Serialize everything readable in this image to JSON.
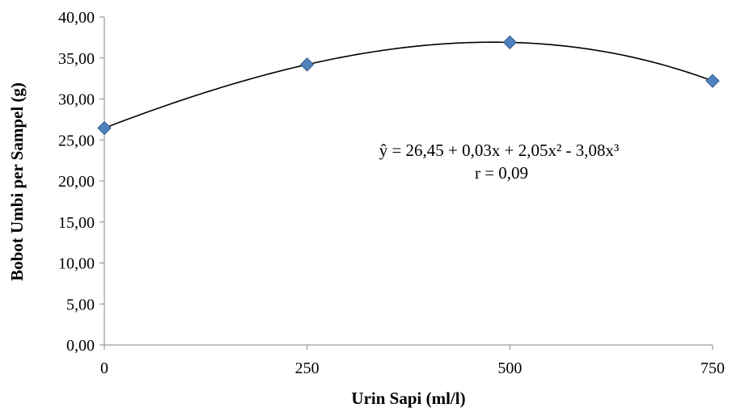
{
  "chart_data": {
    "type": "scatter",
    "xlabel": "Urin Sapi (ml/l)",
    "ylabel": "Bobot Umbi per Sampel (g)",
    "x_ticks": [
      "0",
      "250",
      "500",
      "750"
    ],
    "y_ticks": [
      "0,00",
      "5,00",
      "10,00",
      "15,00",
      "20,00",
      "25,00",
      "30,00",
      "35,00",
      "40,00"
    ],
    "xlim": [
      0,
      750
    ],
    "ylim": [
      0,
      40
    ],
    "points": [
      {
        "x": 0,
        "y": 26.45
      },
      {
        "x": 250,
        "y": 34.2
      },
      {
        "x": 500,
        "y": 36.9
      },
      {
        "x": 750,
        "y": 32.2
      }
    ],
    "trendline": {
      "type": "cubic",
      "equation": "ŷ = 26,45 + 0,03x + 2,05x² - 3,08x³",
      "r_label": "r = 0,09"
    },
    "marker_color": "#4f81bd",
    "marker_border": "#385d8a",
    "line_color": "#000000",
    "grid": false
  }
}
